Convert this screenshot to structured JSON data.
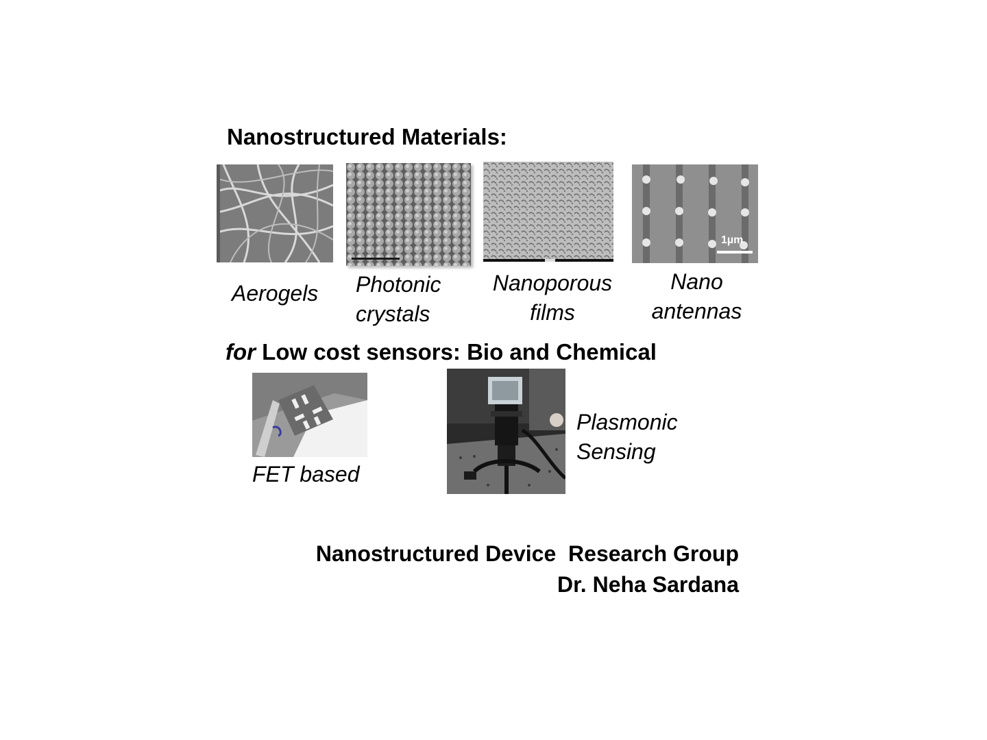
{
  "heading": "Nanostructured Materials:",
  "materials": [
    {
      "image": "aerogel-sem-image",
      "caption": [
        "Aerogels"
      ]
    },
    {
      "image": "photonic-crystal-sem-image",
      "caption": [
        "Photonic",
        "crystals"
      ]
    },
    {
      "image": "nanoporous-film-sem-image",
      "caption": [
        "Nanoporous",
        "films"
      ]
    },
    {
      "image": "nano-antenna-sem-image",
      "caption": [
        "Nano",
        "antennas"
      ],
      "scale_bar": "1µm"
    }
  ],
  "sensors_heading": {
    "prefix": "for",
    "text": "Low cost sensors: Bio and Chemical"
  },
  "sensors": [
    {
      "image": "fet-device-photo",
      "caption": [
        "FET based"
      ]
    },
    {
      "image": "plasmonic-setup-photo",
      "caption": [
        "Plasmonic",
        "Sensing"
      ]
    }
  ],
  "footer": {
    "group": "Nanostructured Device  Research Group",
    "author": "Dr. Neha Sardana"
  }
}
